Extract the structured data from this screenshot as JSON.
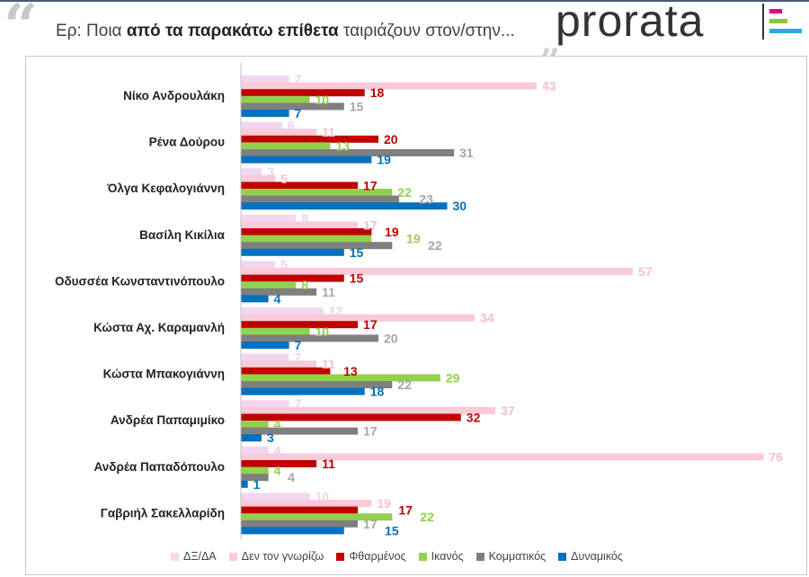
{
  "header": {
    "title_prefix": "Ερ: ",
    "title_normal1": "Ποια ",
    "title_bold": "από τα παρακάτω επίθετα",
    "title_rest": " ταιριάζουν στον/στην...",
    "logo_text": "prorata",
    "logo_colors": [
      "#e6007e",
      "#8dc63f",
      "#29abe2"
    ]
  },
  "chart_data": {
    "type": "bar",
    "orientation": "horizontal",
    "categories": [
      "Νίκο Ανδρουλάκη",
      "Ρένα Δούρου",
      "Όλγα Κεφαλογιάννη",
      "Βασίλη Κικίλια",
      "Οδυσσέα Κωνσταντινόπουλο",
      "Κώστα Αχ. Καραμανλή",
      "Κώστα Μπακογιάννη",
      "Ανδρέα Παπαμιμίκο",
      "Ανδρέα Παπαδόπουλο",
      "Γαβριήλ Σακελλαρίδη"
    ],
    "series": [
      {
        "name": "ΔΞ/ΔΑ",
        "color": "#f3d6f0",
        "label_color": "#f0d0ec",
        "values": [
          7,
          6,
          3,
          8,
          5,
          12,
          7,
          7,
          4,
          10
        ]
      },
      {
        "name": "Δεν τον γνωρίζω",
        "color": "#f9cad8",
        "label_color": "#f5bfd0",
        "values": [
          43,
          11,
          5,
          17,
          57,
          34,
          11,
          37,
          76,
          19
        ]
      },
      {
        "name": "Φθαρμένος",
        "color": "#c00000",
        "label_color": "#c00000",
        "values": [
          18,
          20,
          17,
          19,
          15,
          17,
          13,
          32,
          11,
          17
        ]
      },
      {
        "name": "Ικανός",
        "color": "#92d050",
        "label_color": "#92d050",
        "values": [
          10,
          13,
          22,
          19,
          8,
          10,
          29,
          4,
          4,
          22
        ]
      },
      {
        "name": "Κομματικός",
        "color": "#7f7f7f",
        "label_color": "#a6a6a6",
        "values": [
          15,
          31,
          23,
          22,
          11,
          20,
          22,
          17,
          4,
          17
        ]
      },
      {
        "name": "Δυναμικός",
        "color": "#0070c0",
        "label_color": "#0070c0",
        "values": [
          7,
          19,
          30,
          15,
          4,
          7,
          18,
          3,
          1,
          15
        ]
      }
    ],
    "legend_position": "bottom",
    "grid": false,
    "data_labels": true
  }
}
